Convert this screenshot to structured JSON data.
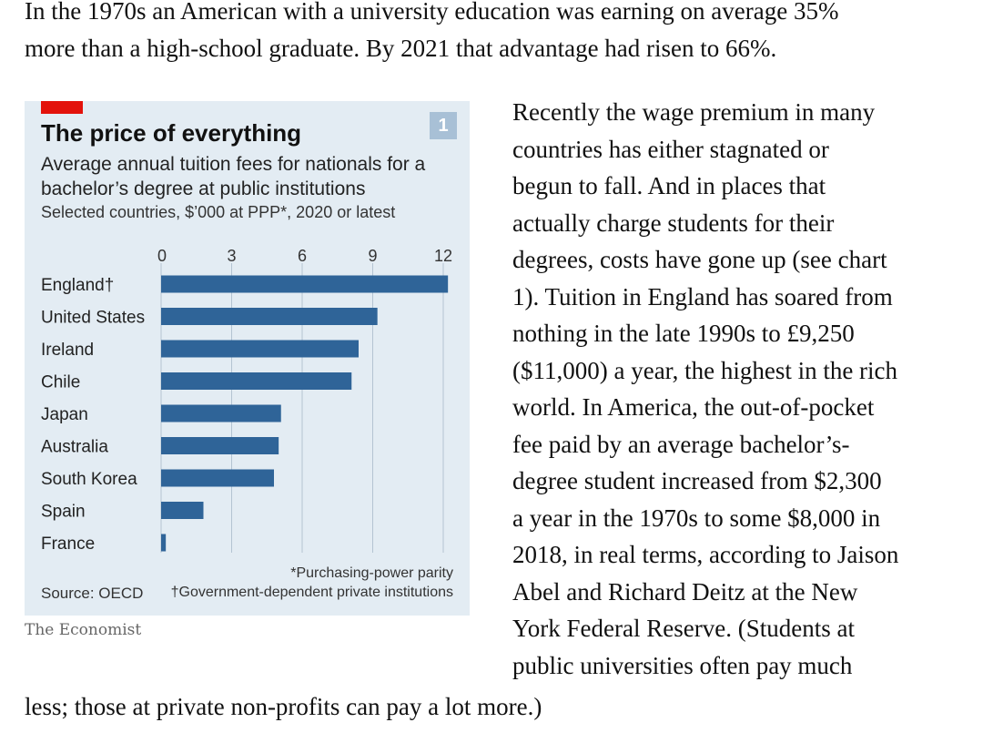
{
  "article": {
    "top_lines": [
      "In the 1970s an American with a university education was earning on average 35%",
      "more than a high-school graduate. By 2021 that advantage had risen to 66%."
    ],
    "right_lines": [
      "Recently the wage premium in many",
      "countries has either stagnated or",
      "begun to fall. And in places that",
      "actually charge students for their",
      "degrees, costs have gone up (see chart",
      "1). Tuition in England has soared from",
      "nothing in the late 1990s to £9,250",
      "($11,000) a year, the highest in the rich",
      "world. In America, the out-of-pocket",
      "fee paid by an average bachelor’s-",
      "degree student increased from $2,300",
      "a year in the 1970s to some $8,000 in",
      "2018, in real terms, according to Jaison",
      "Abel and Richard Deitz at the New",
      "York Federal Reserve. (Students at",
      "public universities often pay much"
    ],
    "bottom_line": "less; those at private non-profits can pay a lot more.)"
  },
  "brand": "The Economist",
  "colors": {
    "bar": "#2f6498",
    "panel": "#e3ecf3",
    "accent": "#e3120b",
    "badge": "#a8c0d6"
  },
  "chart_data": {
    "type": "bar",
    "orientation": "horizontal",
    "number": "1",
    "title": "The price of everything",
    "subtitle": "Average annual tuition fees for nationals for a bachelor’s degree at public institutions",
    "subtitle2": "Selected countries, $’000 at PPP*, 2020 or latest",
    "categories": [
      "England†",
      "United States",
      "Ireland",
      "Chile",
      "Japan",
      "Australia",
      "South Korea",
      "Spain",
      "France"
    ],
    "values": [
      12.2,
      9.2,
      8.4,
      8.1,
      5.1,
      5.0,
      4.8,
      1.8,
      0.2
    ],
    "xticks": [
      "0",
      "3",
      "6",
      "9",
      "12"
    ],
    "xlim": [
      0,
      12.5
    ],
    "grid": true,
    "source": "Source: OECD",
    "footnotes": [
      "*Purchasing-power parity",
      "†Government-dependent private institutions"
    ]
  }
}
